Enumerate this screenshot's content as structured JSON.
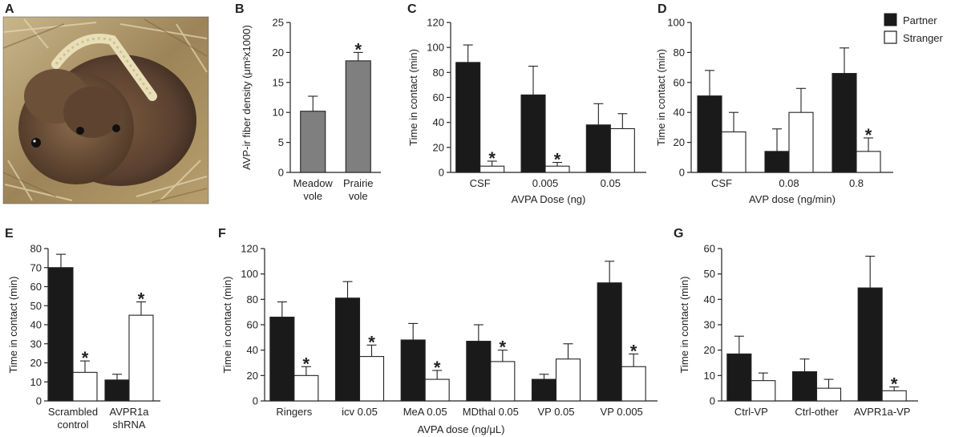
{
  "figure": {
    "colors": {
      "partner": "#1a1a1a",
      "stranger": "#ffffff",
      "gray": "#7f7f7f",
      "axis": "#222222"
    },
    "legend": {
      "partner": "Partner",
      "stranger": "Stranger"
    }
  },
  "panel_a": {
    "label": "A",
    "photo_description_icon": "voles-photo-icon"
  },
  "chart_data": [
    {
      "id": "B",
      "label": "B",
      "type": "bar",
      "categories": [
        "Meadow\nvole",
        "Prairie\nvole"
      ],
      "series": [
        {
          "name": "AVP-ir fiber density",
          "values": [
            10.2,
            18.6
          ],
          "errors": [
            2.5,
            1.4
          ],
          "stars": [
            false,
            true
          ]
        }
      ],
      "ylabel": "AVP-ir fiber density (μm²x1000)",
      "xlabel": "",
      "ylim": [
        0,
        25
      ],
      "yticks": [
        0,
        5,
        10,
        15,
        20,
        25
      ]
    },
    {
      "id": "C",
      "label": "C",
      "type": "bar",
      "categories": [
        "CSF",
        "0.005",
        "0.05"
      ],
      "series": [
        {
          "name": "Partner",
          "values": [
            88,
            62,
            38
          ],
          "errors": [
            14,
            23,
            17
          ],
          "stars": [
            false,
            false,
            false
          ]
        },
        {
          "name": "Stranger",
          "values": [
            5,
            5,
            35
          ],
          "errors": [
            4,
            3,
            12
          ],
          "stars": [
            true,
            true,
            false
          ]
        }
      ],
      "ylabel": "Time in contact (min)",
      "xlabel": "AVPA Dose (ng)",
      "ylim": [
        0,
        120
      ],
      "yticks": [
        0,
        20,
        40,
        60,
        80,
        100,
        120
      ]
    },
    {
      "id": "D",
      "label": "D",
      "type": "bar",
      "categories": [
        "CSF",
        "0.08",
        "0.8"
      ],
      "series": [
        {
          "name": "Partner",
          "values": [
            51,
            14,
            66
          ],
          "errors": [
            17,
            15,
            17
          ],
          "stars": [
            false,
            false,
            false
          ]
        },
        {
          "name": "Stranger",
          "values": [
            27,
            40,
            14
          ],
          "errors": [
            13,
            16,
            9
          ],
          "stars": [
            false,
            false,
            true
          ]
        }
      ],
      "ylabel": "Time in contact (min)",
      "xlabel": "AVP dose (ng/min)",
      "ylim": [
        0,
        100
      ],
      "yticks": [
        0,
        20,
        40,
        60,
        80,
        100
      ]
    },
    {
      "id": "E",
      "label": "E",
      "type": "bar",
      "categories": [
        "Scrambled\ncontrol",
        "AVPR1a\nshRNA"
      ],
      "series": [
        {
          "name": "Partner",
          "values": [
            70,
            11
          ],
          "errors": [
            7,
            3
          ],
          "stars": [
            false,
            false
          ]
        },
        {
          "name": "Stranger",
          "values": [
            15,
            45
          ],
          "errors": [
            6,
            7
          ],
          "stars": [
            true,
            true
          ]
        }
      ],
      "ylabel": "Time in contact (min)",
      "xlabel": "",
      "ylim": [
        0,
        80
      ],
      "yticks": [
        0,
        10,
        20,
        30,
        40,
        50,
        60,
        70,
        80
      ]
    },
    {
      "id": "F",
      "label": "F",
      "type": "bar",
      "categories": [
        "Ringers",
        "icv 0.05",
        "MeA 0.05",
        "MDthal 0.05",
        "VP 0.05",
        "VP 0.005"
      ],
      "series": [
        {
          "name": "Partner",
          "values": [
            66,
            81,
            48,
            47,
            17,
            93
          ],
          "errors": [
            12,
            13,
            13,
            13,
            4,
            17
          ],
          "stars": [
            false,
            false,
            false,
            false,
            false,
            false
          ]
        },
        {
          "name": "Stranger",
          "values": [
            20,
            35,
            17,
            31,
            33,
            27
          ],
          "errors": [
            7,
            9,
            7,
            9,
            12,
            10
          ],
          "stars": [
            true,
            true,
            true,
            true,
            false,
            true
          ]
        }
      ],
      "ylabel": "Time in contact (min)",
      "xlabel": "AVPA dose (ng/μL)",
      "ylim": [
        0,
        120
      ],
      "yticks": [
        0,
        20,
        40,
        60,
        80,
        100,
        120
      ]
    },
    {
      "id": "G",
      "label": "G",
      "type": "bar",
      "categories": [
        "Ctrl-VP",
        "Ctrl-other",
        "AVPR1a-VP"
      ],
      "series": [
        {
          "name": "Partner",
          "values": [
            18.5,
            11.5,
            44.5
          ],
          "errors": [
            7,
            5,
            12.5
          ],
          "stars": [
            false,
            false,
            false
          ]
        },
        {
          "name": "Stranger",
          "values": [
            8,
            5,
            4
          ],
          "errors": [
            3,
            3.5,
            1.5
          ],
          "stars": [
            false,
            false,
            true
          ]
        }
      ],
      "ylabel": "Time in contact (min)",
      "xlabel": "",
      "ylim": [
        0,
        60
      ],
      "yticks": [
        0,
        10,
        20,
        30,
        40,
        50,
        60
      ]
    }
  ]
}
